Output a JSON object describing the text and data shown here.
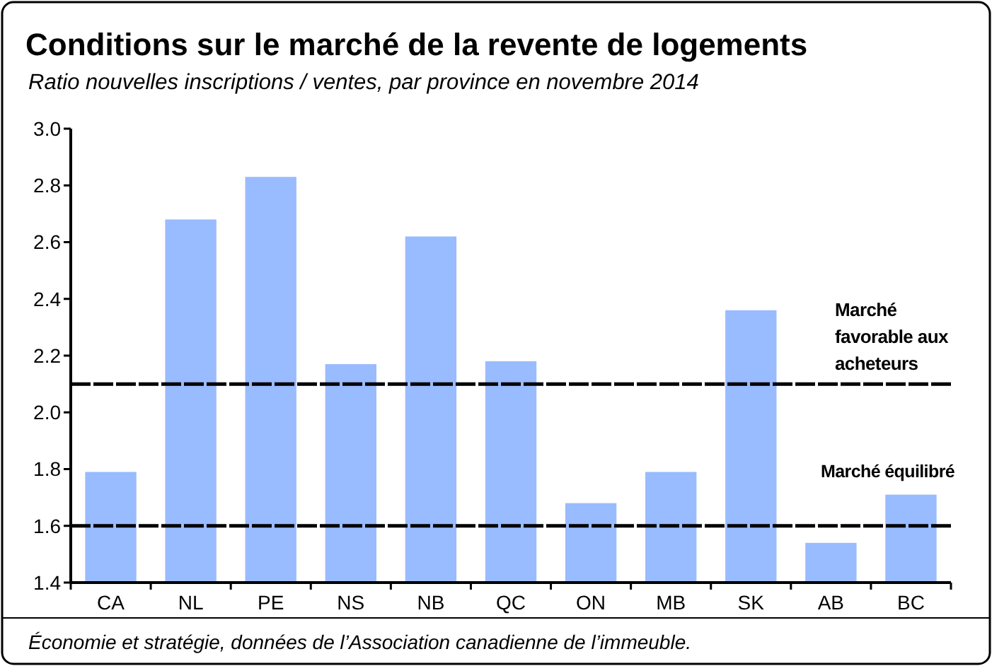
{
  "chart_data": {
    "type": "bar",
    "title": "Conditions sur le marché de la revente de logements",
    "subtitle": "Ratio nouvelles inscriptions / ventes, par province en novembre 2014",
    "categories": [
      "CA",
      "NL",
      "PE",
      "NS",
      "NB",
      "QC",
      "ON",
      "MB",
      "SK",
      "AB",
      "BC"
    ],
    "values": [
      1.79,
      2.68,
      2.83,
      2.17,
      2.62,
      2.18,
      1.68,
      1.79,
      2.36,
      1.54,
      1.71
    ],
    "color": "#99bbff",
    "ylim": [
      1.4,
      3.0
    ],
    "yticks": [
      {
        "value": 1.4,
        "label": "1.4"
      },
      {
        "value": 1.6,
        "label": "1.6"
      },
      {
        "value": 1.8,
        "label": "1.8"
      },
      {
        "value": 2.0,
        "label": "2.0"
      },
      {
        "value": 2.2,
        "label": "2.2"
      },
      {
        "value": 2.4,
        "label": "2.4"
      },
      {
        "value": 2.6,
        "label": "2.6"
      },
      {
        "value": 2.8,
        "label": "2.8"
      },
      {
        "value": 3.0,
        "label": "3.0"
      }
    ],
    "grid": false,
    "ref_lines": [
      {
        "axis": "y",
        "value": 2.1,
        "label": "Marché favorable aux acheteurs",
        "color": "#000000",
        "line_style": "dashed"
      },
      {
        "axis": "y",
        "value": 1.6,
        "label": "Marché équilibré",
        "color": "#000000",
        "line_style": "dashed"
      }
    ],
    "annotations": [
      "Économie et stratégie, données de l’Association canadienne de l’immeuble."
    ]
  }
}
